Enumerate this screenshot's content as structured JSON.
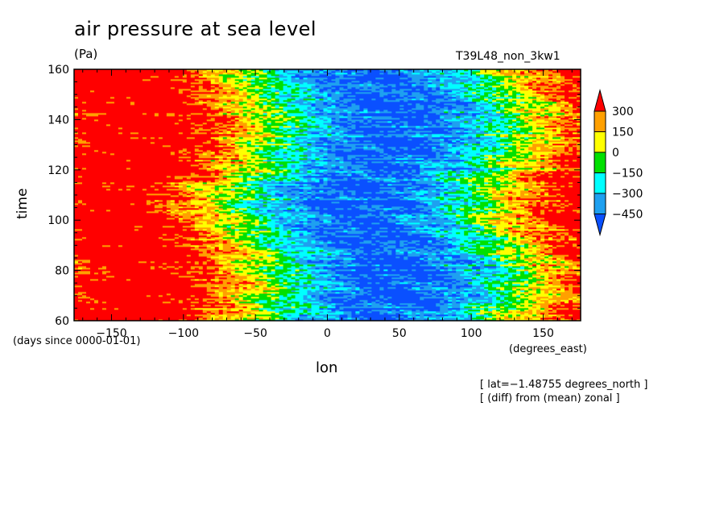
{
  "chart_data": {
    "type": "heatmap",
    "title": "air pressure at sea level",
    "units": "(Pa)",
    "run_label": "T39L48_non_3kw1",
    "xlabel": "lon",
    "ylabel": "time",
    "x_units": "(degrees_east)",
    "y_units": "(days since 0000-01-01)",
    "xlim": [
      -176,
      176
    ],
    "ylim": [
      60,
      160
    ],
    "xticks": [
      -150,
      -100,
      -50,
      0,
      50,
      100,
      150
    ],
    "xtick_labels": [
      "−150",
      "−100",
      "−50",
      "0",
      "50",
      "100",
      "150"
    ],
    "yticks": [
      60,
      80,
      100,
      120,
      140,
      160
    ],
    "ytick_labels": [
      "60",
      "80",
      "100",
      "120",
      "140",
      "160"
    ],
    "colorbar": {
      "levels": [
        -450,
        -300,
        -150,
        0,
        150,
        300
      ],
      "labels": [
        "300",
        "150",
        "0",
        "−150",
        "−300",
        "−450"
      ],
      "colors": [
        "#0a50ff",
        "#1ea0f0",
        "#00ffff",
        "#00e000",
        "#ffff00",
        "#ffa000",
        "#ff0000"
      ],
      "extend": "both"
    },
    "notes": [
      "[ lat=−1.48755 degrees_north ]",
      "[ (diff) from (mean) zonal ]"
    ]
  }
}
